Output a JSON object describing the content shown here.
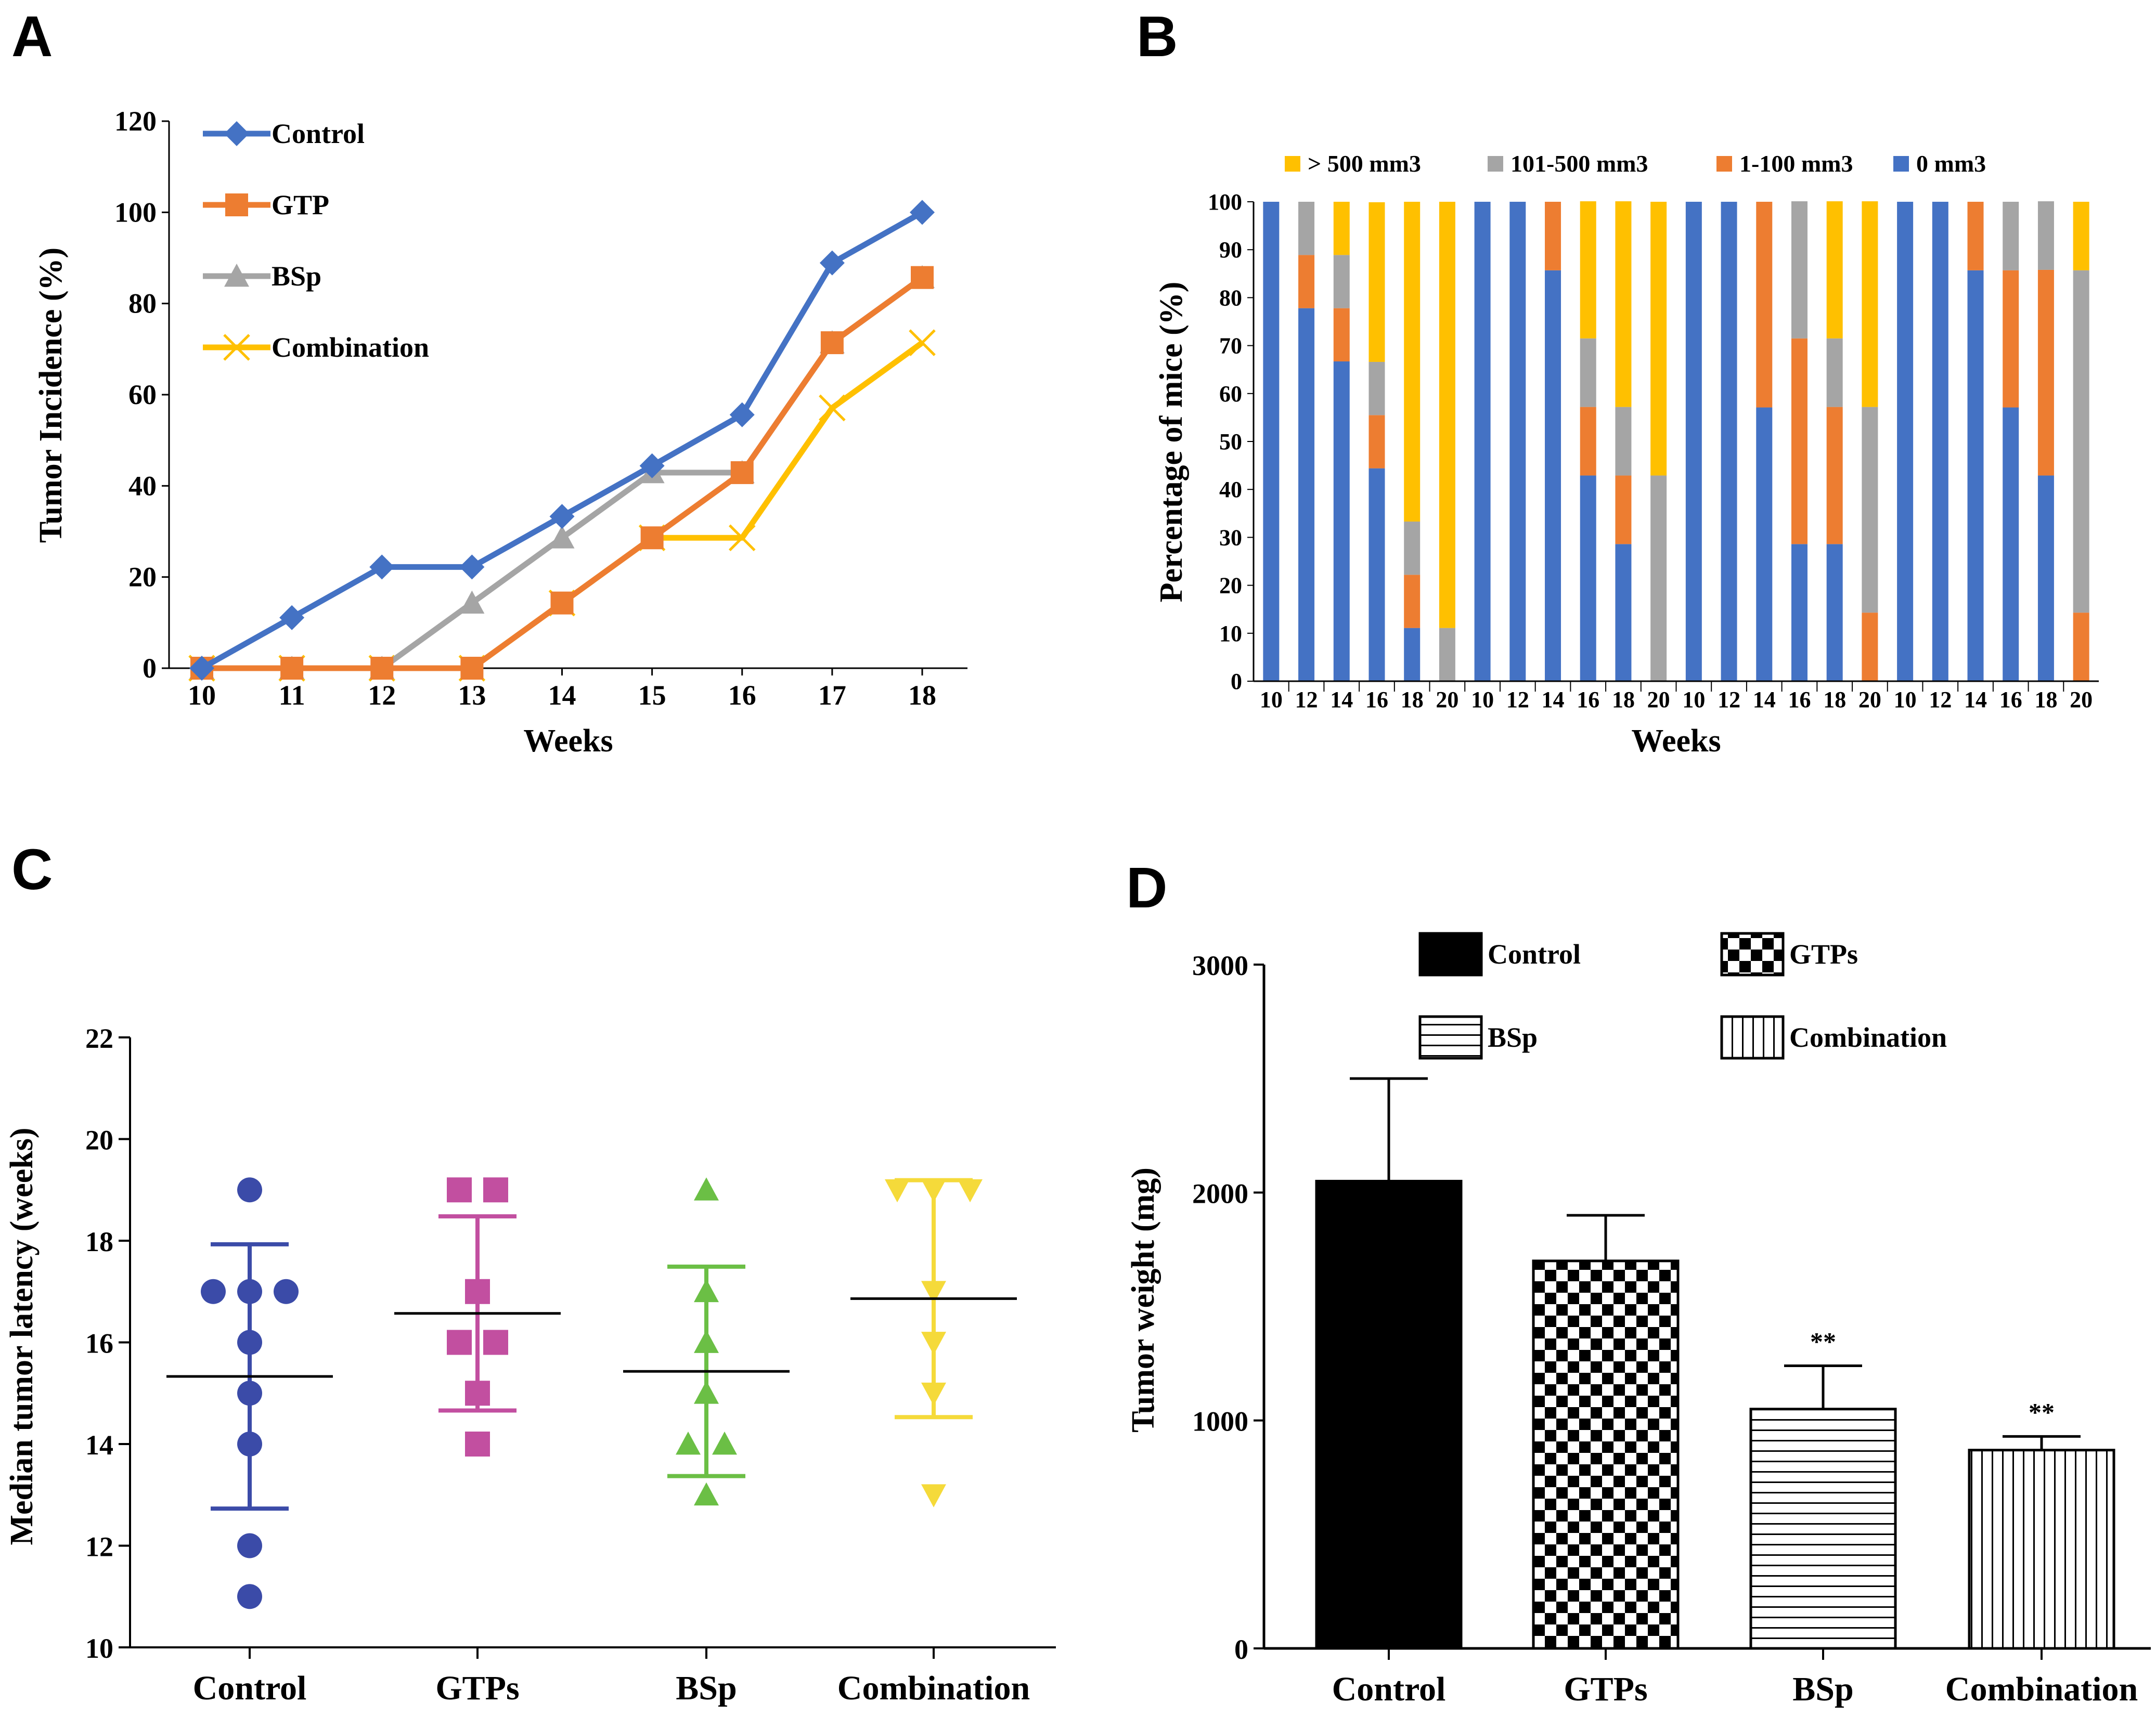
{
  "panels": {
    "A": {
      "letter": "A"
    },
    "B": {
      "letter": "B"
    },
    "C": {
      "letter": "C"
    },
    "D": {
      "letter": "D"
    }
  },
  "chart_data": [
    {
      "panel": "A",
      "type": "line",
      "xlabel": "Weeks",
      "ylabel": "Tumor Incidence (%)",
      "categories": [
        "10",
        "11",
        "12",
        "13",
        "14",
        "15",
        "16",
        "17",
        "18"
      ],
      "ylim": [
        0,
        120
      ],
      "yticks": [
        0,
        20,
        40,
        60,
        80,
        100,
        120
      ],
      "legend_position": "top-left",
      "series": [
        {
          "name": "Control",
          "color": "#4472C4",
          "marker": "diamond",
          "values": [
            0,
            11.1,
            22.2,
            22.2,
            33.3,
            44.4,
            55.6,
            88.9,
            100
          ]
        },
        {
          "name": "GTP",
          "color": "#ED7D31",
          "marker": "square",
          "values": [
            0,
            0,
            0,
            0,
            14.3,
            28.6,
            42.9,
            71.4,
            85.7
          ]
        },
        {
          "name": "BSp",
          "color": "#A5A5A5",
          "marker": "triangle",
          "values": [
            0,
            0,
            0,
            14.3,
            28.6,
            42.9,
            42.9,
            71.4,
            85.7
          ]
        },
        {
          "name": "Combination",
          "color": "#FFC000",
          "marker": "x",
          "values": [
            0,
            0,
            0,
            0,
            14.3,
            28.6,
            28.6,
            57.1,
            71.4
          ]
        }
      ]
    },
    {
      "panel": "B",
      "type": "bar",
      "stacked": true,
      "xlabel": "Weeks",
      "ylabel": "Percentage of mice (%)",
      "categories": [
        "10",
        "12",
        "14",
        "16",
        "18",
        "20",
        "10",
        "12",
        "14",
        "16",
        "18",
        "20",
        "10",
        "12",
        "14",
        "16",
        "18",
        "20",
        "10",
        "12",
        "14",
        "16",
        "18",
        "20"
      ],
      "ylim": [
        0,
        100
      ],
      "yticks": [
        0,
        10,
        20,
        30,
        40,
        50,
        60,
        70,
        80,
        90,
        100
      ],
      "legend_position": "top",
      "series": [
        {
          "name": "0 mm3",
          "color": "#4472C4",
          "values": [
            100,
            77.8,
            66.7,
            44.4,
            11.1,
            0,
            100,
            100,
            85.7,
            42.9,
            28.6,
            0,
            100,
            100,
            57.1,
            28.6,
            28.6,
            0,
            100,
            100,
            85.7,
            57.1,
            42.9,
            0
          ]
        },
        {
          "name": "1-100 mm3",
          "color": "#ED7D31",
          "values": [
            0,
            11.1,
            11.1,
            11.1,
            11.1,
            0,
            0,
            0,
            14.3,
            14.3,
            14.3,
            0,
            0,
            0,
            42.9,
            42.9,
            28.6,
            14.3,
            0,
            0,
            14.3,
            28.6,
            42.9,
            14.3
          ]
        },
        {
          "name": "101-500 mm3",
          "color": "#A5A5A5",
          "values": [
            0,
            11.1,
            11.1,
            11.1,
            11.1,
            11.1,
            0,
            0,
            0,
            14.3,
            14.3,
            42.9,
            0,
            0,
            0,
            28.6,
            14.3,
            42.9,
            0,
            0,
            0,
            14.3,
            14.3,
            71.4
          ]
        },
        {
          "name": "> 500 mm3",
          "color": "#FFC000",
          "values": [
            0,
            0,
            11.1,
            33.3,
            66.7,
            88.9,
            0,
            0,
            0,
            28.6,
            42.9,
            57.1,
            0,
            0,
            0,
            0,
            28.6,
            42.9,
            0,
            0,
            0,
            0,
            0,
            14.3
          ]
        }
      ]
    },
    {
      "panel": "C",
      "type": "scatter",
      "xlabel": "",
      "ylabel": "Median tumor latency  (weeks)",
      "categories": [
        "Control",
        "GTPs",
        "BSp",
        "Combination"
      ],
      "ylim": [
        10,
        22
      ],
      "yticks": [
        10,
        12,
        14,
        16,
        18,
        20,
        22
      ],
      "series": [
        {
          "name": "Control",
          "color": "#3B4BA8",
          "marker": "circle",
          "points": [
            19,
            17,
            17,
            17,
            16,
            15,
            14,
            12,
            11
          ],
          "mean": 15.33,
          "sd_low": 12.73,
          "sd_high": 17.93
        },
        {
          "name": "GTPs",
          "color": "#C24FA0",
          "marker": "square",
          "points": [
            19,
            19,
            17,
            16,
            16,
            15,
            14
          ],
          "mean": 16.57,
          "sd_low": 14.66,
          "sd_high": 18.48
        },
        {
          "name": "BSp",
          "color": "#6BBF45",
          "marker": "triangle",
          "points": [
            19,
            17,
            16,
            15,
            14,
            14,
            13
          ],
          "mean": 15.43,
          "sd_low": 13.37,
          "sd_high": 17.49
        },
        {
          "name": "Combination",
          "color": "#F5DA3A",
          "marker": "triangle-down",
          "points": [
            19,
            19,
            19,
            17,
            16,
            15,
            13
          ],
          "mean": 16.86,
          "sd_low": 14.53,
          "sd_high": 19.19
        }
      ]
    },
    {
      "panel": "D",
      "type": "bar",
      "xlabel": "",
      "ylabel": "Tumor weight  (mg)",
      "categories": [
        "Control",
        "GTPs",
        "BSp",
        "Combination"
      ],
      "values": [
        2050,
        1700,
        1050,
        870
      ],
      "errors": [
        450,
        200,
        190,
        60
      ],
      "annotations": [
        "",
        "",
        "**",
        "**"
      ],
      "ylim": [
        0,
        3000
      ],
      "yticks": [
        0,
        1000,
        2000,
        3000
      ],
      "legend_position": "top",
      "legend": [
        {
          "name": "Control",
          "pattern": "solid"
        },
        {
          "name": "GTPs",
          "pattern": "checker"
        },
        {
          "name": "BSp",
          "pattern": "horizontal-lines"
        },
        {
          "name": "Combination",
          "pattern": "vertical-lines"
        }
      ]
    }
  ]
}
